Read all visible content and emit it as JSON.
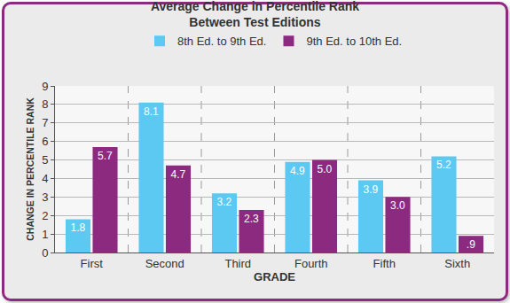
{
  "chart_data": {
    "type": "bar",
    "title": "Average Change in Percentile Rank\nBetween Test Editions",
    "x_label": "GRADE",
    "y_label": "CHANGE IN PERCENTILE RANK",
    "categories": [
      "First",
      "Second",
      "Third",
      "Fourth",
      "Fifth",
      "Sixth"
    ],
    "series": [
      {
        "name": "8th Ed. to 9th Ed.",
        "color": "#5bc9f1",
        "values": [
          1.8,
          8.1,
          3.2,
          4.9,
          3.9,
          5.2
        ],
        "value_labels": [
          "1.8",
          "8.1",
          "3.2",
          "4.9",
          "3.9",
          "5.2"
        ]
      },
      {
        "name": "9th Ed. to 10th Ed.",
        "color": "#8c2a80",
        "values": [
          5.7,
          4.7,
          2.3,
          5.0,
          3.0,
          0.9
        ],
        "value_labels": [
          "5.7",
          "4.7",
          "2.3",
          "5.0",
          "3.0",
          ".9"
        ]
      }
    ],
    "ylim": [
      0,
      9
    ],
    "yticks": [
      0,
      1,
      2,
      3,
      4,
      5,
      6,
      7,
      8,
      9
    ],
    "grid": true,
    "legend": "top",
    "data_labels": true
  }
}
